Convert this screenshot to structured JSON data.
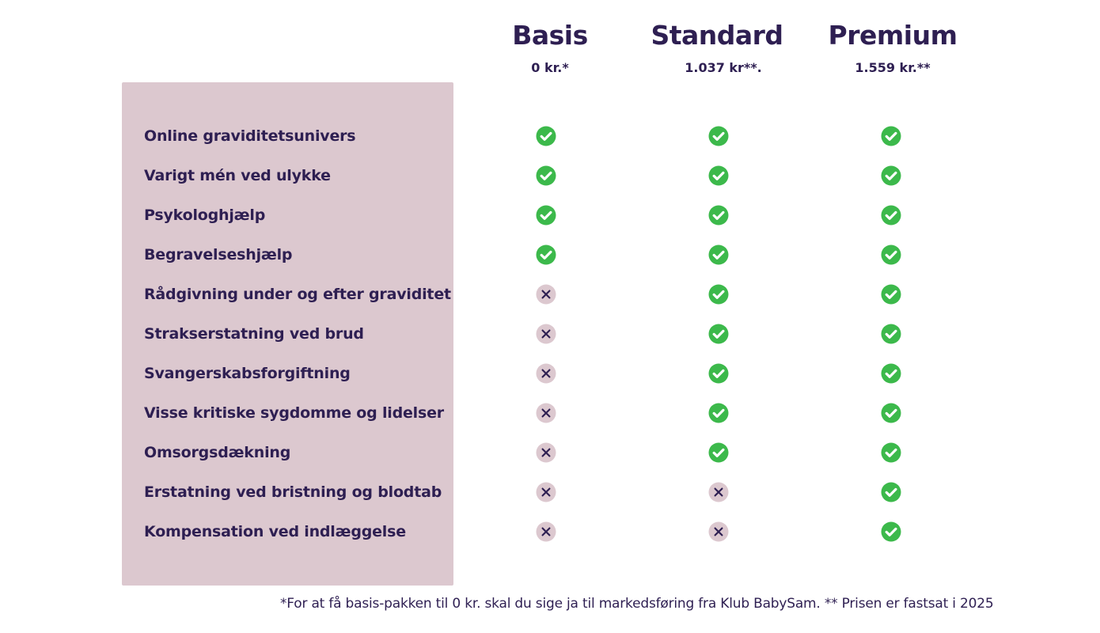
{
  "colors": {
    "text": "#2e1f52",
    "panel": "#dcc8cf",
    "check": "#3cb94b",
    "cross_bg": "#dcc8cf"
  },
  "plans": [
    {
      "name": "Basis",
      "price": "0 kr.*"
    },
    {
      "name": "Standard",
      "price": "1.037 kr**."
    },
    {
      "name": "Premium",
      "price": "1.559 kr.**"
    }
  ],
  "features": [
    {
      "label": "Online graviditetsunivers",
      "included": [
        "check-icon",
        "check-icon",
        "check-icon"
      ]
    },
    {
      "label": "Varigt mén ved ulykke",
      "included": [
        "check-icon",
        "check-icon",
        "check-icon"
      ]
    },
    {
      "label": "Psykologhjælp",
      "included": [
        "check-icon",
        "check-icon",
        "check-icon"
      ]
    },
    {
      "label": "Begravelseshjælp",
      "included": [
        "check-icon",
        "check-icon",
        "check-icon"
      ]
    },
    {
      "label": "Rådgivning under og efter graviditet",
      "included": [
        "cross-icon",
        "check-icon",
        "check-icon"
      ]
    },
    {
      "label": "Strakserstatning ved brud",
      "included": [
        "cross-icon",
        "check-icon",
        "check-icon"
      ]
    },
    {
      "label": "Svangerskabsforgiftning",
      "included": [
        "cross-icon",
        "check-icon",
        "check-icon"
      ]
    },
    {
      "label": "Visse kritiske sygdomme og lidelser",
      "included": [
        "cross-icon",
        "check-icon",
        "check-icon"
      ]
    },
    {
      "label": "Omsorgsdækning",
      "included": [
        "cross-icon",
        "check-icon",
        "check-icon"
      ]
    },
    {
      "label": "Erstatning ved bristning og blodtab",
      "included": [
        "cross-icon",
        "cross-icon",
        "check-icon"
      ]
    },
    {
      "label": "Kompensation ved indlæggelse",
      "included": [
        "cross-icon",
        "cross-icon",
        "check-icon"
      ]
    }
  ],
  "footnote": "*For at få basis-pakken til 0 kr. skal du sige ja til markedsføring fra Klub BabySam. ** Prisen er fastsat i 2025"
}
